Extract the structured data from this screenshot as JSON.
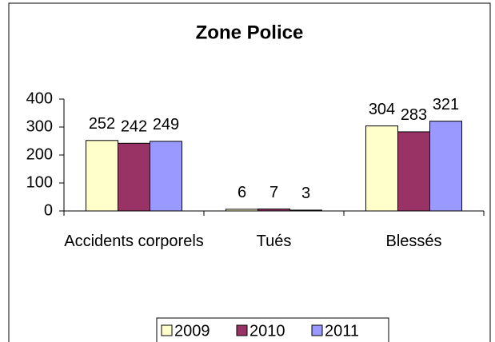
{
  "chart_data": {
    "type": "bar",
    "title": "Zone Police",
    "categories": [
      "Accidents corporels",
      "Tués",
      "Blessés"
    ],
    "series": [
      {
        "name": "2009",
        "color": "#ffffcc",
        "values": [
          252,
          6,
          304
        ]
      },
      {
        "name": "2010",
        "color": "#993366",
        "values": [
          242,
          7,
          283
        ]
      },
      {
        "name": "2011",
        "color": "#9999ff",
        "values": [
          249,
          3,
          321
        ]
      }
    ],
    "ylim": [
      0,
      400
    ],
    "yticks": [
      0,
      100,
      200,
      300,
      400
    ],
    "grid": false,
    "legend": "bottom"
  }
}
